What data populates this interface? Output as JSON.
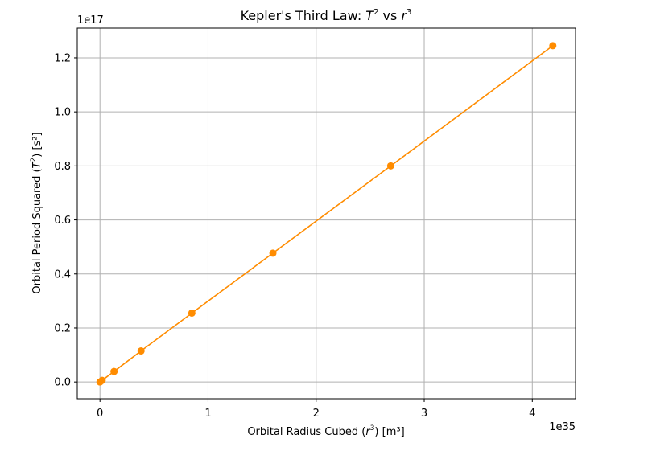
{
  "chart_data": {
    "type": "line",
    "title": {
      "pre": "Kepler's Third Law: ",
      "t": "T",
      "t_exp": "2",
      "mid": " vs ",
      "r": "r",
      "r_exp": "3"
    },
    "xlabel": {
      "pre": "Orbital Radius Cubed (",
      "var": "r",
      "exp": "3",
      "post": ") [m³]"
    },
    "ylabel": {
      "pre": "Orbital Period Squared (",
      "var": "T",
      "exp": "2",
      "post": ") [s²]"
    },
    "x_offset_label": "1e35",
    "y_offset_label": "1e17",
    "x_scale": 1e+35,
    "y_scale": 1e+17,
    "xlim": [
      -0.21,
      4.4
    ],
    "ylim": [
      -0.062,
      1.31
    ],
    "x_ticks": [
      0,
      1,
      2,
      3,
      4
    ],
    "x_tick_labels": [
      "0",
      "1",
      "2",
      "3",
      "4"
    ],
    "y_ticks": [
      0.0,
      0.2,
      0.4,
      0.6,
      0.8,
      1.0,
      1.2
    ],
    "y_tick_labels": [
      "0.0",
      "0.2",
      "0.4",
      "0.6",
      "0.8",
      "1.0",
      "1.2"
    ],
    "grid": true,
    "color": "#ff8c00",
    "grid_color": "#b0b0b0",
    "series": [
      {
        "x": [
          0.0,
          0.02,
          0.13,
          0.38,
          0.85,
          1.6,
          2.69,
          4.19
        ],
        "y": [
          0.0,
          0.006,
          0.039,
          0.115,
          0.255,
          0.477,
          0.8,
          1.245
        ]
      }
    ]
  }
}
